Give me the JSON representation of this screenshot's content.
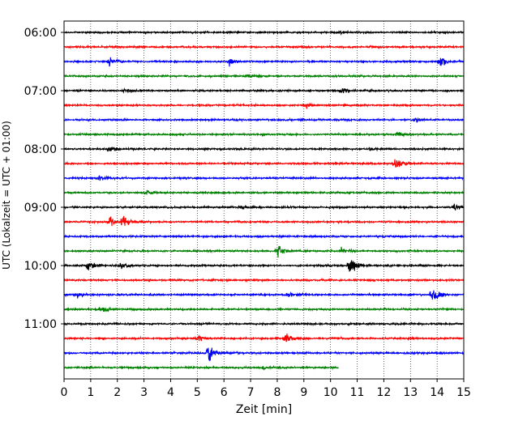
{
  "chart_data": {
    "type": "line",
    "xlabel": "Zeit  [min]",
    "ylabel": "UTC (Lokalzeit = UTC + 01:00)",
    "xlim": [
      0,
      15
    ],
    "x_ticks": [
      0,
      1,
      2,
      3,
      4,
      5,
      6,
      7,
      8,
      9,
      10,
      11,
      12,
      13,
      14,
      15
    ],
    "y_tick_labels": [
      "06:00",
      "07:00",
      "08:00",
      "09:00",
      "10:00",
      "11:00"
    ],
    "grid": "vertical dotted",
    "colors": [
      "#000000",
      "#ff0000",
      "#0000ff",
      "#008000"
    ],
    "trace_interval_min": 15,
    "traces": [
      {
        "start": "06:00",
        "color": "#000000",
        "end_min": 15,
        "events": [
          [
            10.2,
            0.25
          ]
        ]
      },
      {
        "start": "06:15",
        "color": "#ff0000",
        "end_min": 15,
        "events": [
          [
            11.5,
            0.2
          ]
        ]
      },
      {
        "start": "06:30",
        "color": "#0000ff",
        "end_min": 15,
        "events": [
          [
            1.7,
            0.45
          ],
          [
            6.2,
            0.45
          ],
          [
            14.1,
            0.75
          ]
        ]
      },
      {
        "start": "06:45",
        "color": "#008000",
        "end_min": 15,
        "events": [
          [
            6.9,
            0.3
          ]
        ]
      },
      {
        "start": "07:00",
        "color": "#000000",
        "end_min": 15,
        "events": [
          [
            2.3,
            0.3
          ],
          [
            10.4,
            0.45
          ]
        ]
      },
      {
        "start": "07:15",
        "color": "#ff0000",
        "end_min": 15,
        "events": [
          [
            9.1,
            0.3
          ]
        ]
      },
      {
        "start": "07:30",
        "color": "#0000ff",
        "end_min": 15,
        "events": [
          [
            13.2,
            0.3
          ]
        ]
      },
      {
        "start": "07:45",
        "color": "#008000",
        "end_min": 15,
        "events": [
          [
            12.5,
            0.3
          ]
        ]
      },
      {
        "start": "08:00",
        "color": "#000000",
        "end_min": 15,
        "events": [
          [
            1.7,
            0.5
          ],
          [
            11.5,
            0.3
          ]
        ]
      },
      {
        "start": "08:15",
        "color": "#ff0000",
        "end_min": 15,
        "events": [
          [
            12.4,
            0.85
          ]
        ]
      },
      {
        "start": "08:30",
        "color": "#0000ff",
        "end_min": 15,
        "events": [
          [
            1.3,
            0.35
          ]
        ]
      },
      {
        "start": "08:45",
        "color": "#008000",
        "end_min": 15,
        "events": [
          [
            3.1,
            0.3
          ]
        ]
      },
      {
        "start": "09:00",
        "color": "#000000",
        "end_min": 15,
        "events": [
          [
            6.6,
            0.35
          ],
          [
            14.6,
            0.55
          ]
        ]
      },
      {
        "start": "09:15",
        "color": "#ff0000",
        "end_min": 15,
        "events": [
          [
            1.7,
            0.6
          ],
          [
            2.2,
            0.85
          ]
        ]
      },
      {
        "start": "09:30",
        "color": "#0000ff",
        "end_min": 15,
        "events": []
      },
      {
        "start": "09:45",
        "color": "#008000",
        "end_min": 15,
        "events": [
          [
            8.0,
            0.8
          ],
          [
            10.4,
            0.3
          ]
        ]
      },
      {
        "start": "10:00",
        "color": "#000000",
        "end_min": 15,
        "events": [
          [
            0.9,
            0.7
          ],
          [
            2.1,
            0.4
          ],
          [
            10.7,
            1.5
          ]
        ]
      },
      {
        "start": "10:15",
        "color": "#ff0000",
        "end_min": 15,
        "events": []
      },
      {
        "start": "10:30",
        "color": "#0000ff",
        "end_min": 15,
        "events": [
          [
            0.5,
            0.35
          ],
          [
            8.4,
            0.4
          ],
          [
            13.8,
            1.1
          ]
        ]
      },
      {
        "start": "10:45",
        "color": "#008000",
        "end_min": 15,
        "events": [
          [
            1.4,
            0.3
          ]
        ]
      },
      {
        "start": "11:00",
        "color": "#000000",
        "end_min": 15,
        "events": []
      },
      {
        "start": "11:15",
        "color": "#ff0000",
        "end_min": 15,
        "events": [
          [
            5.0,
            0.35
          ],
          [
            8.3,
            0.85
          ]
        ]
      },
      {
        "start": "11:30",
        "color": "#0000ff",
        "end_min": 15,
        "events": [
          [
            5.4,
            1.3
          ]
        ]
      },
      {
        "start": "11:45",
        "color": "#008000",
        "end_min": 10.3,
        "events": [
          [
            7.5,
            0.3
          ]
        ]
      }
    ]
  }
}
